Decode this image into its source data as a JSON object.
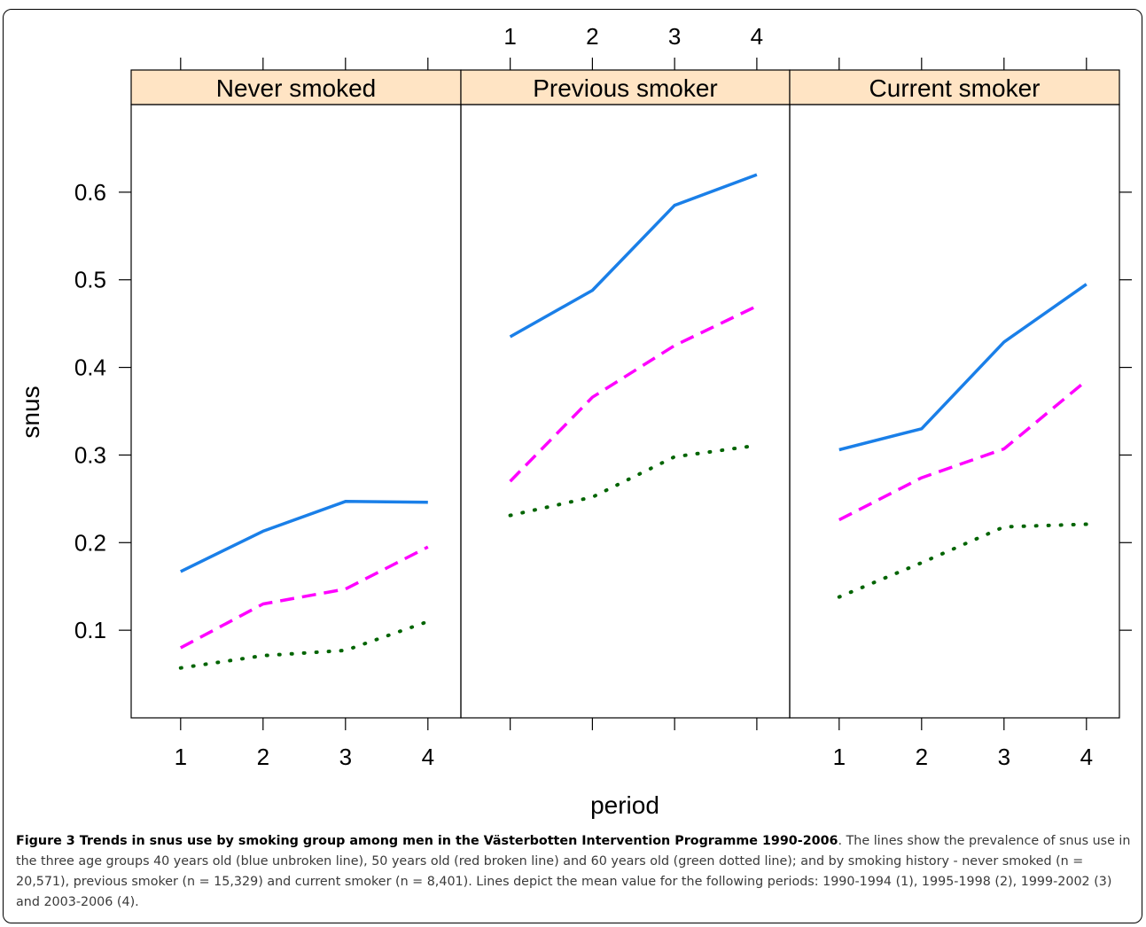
{
  "chart_data": {
    "type": "line",
    "ylabel": "snus",
    "xlabel": "period",
    "x": [
      1,
      2,
      3,
      4
    ],
    "x_tick_labels": [
      "1",
      "2",
      "3",
      "4"
    ],
    "y_ticks": [
      0.1,
      0.2,
      0.3,
      0.4,
      0.5,
      0.6
    ],
    "y_tick_labels": [
      "0.1",
      "0.2",
      "0.3",
      "0.4",
      "0.5",
      "0.6"
    ],
    "ylim": [
      0.0,
      0.7
    ],
    "xlim": [
      0.4,
      4.4
    ],
    "strip_color": "#ffe4c4",
    "panels": [
      {
        "title": "Never smoked",
        "series": [
          {
            "style": "solid",
            "color": "#1a7fe8",
            "values": [
              0.167,
              0.213,
              0.247,
              0.246
            ]
          },
          {
            "style": "dashed",
            "color": "#ff00ff",
            "values": [
              0.08,
              0.13,
              0.147,
              0.195
            ]
          },
          {
            "style": "dotted",
            "color": "#006400",
            "values": [
              0.057,
              0.071,
              0.077,
              0.11
            ]
          }
        ]
      },
      {
        "title": "Previous smoker",
        "series": [
          {
            "style": "solid",
            "color": "#1a7fe8",
            "values": [
              0.435,
              0.488,
              0.585,
              0.62
            ]
          },
          {
            "style": "dashed",
            "color": "#ff00ff",
            "values": [
              0.27,
              0.366,
              0.425,
              0.47
            ]
          },
          {
            "style": "dotted",
            "color": "#006400",
            "values": [
              0.231,
              0.252,
              0.298,
              0.311
            ]
          }
        ]
      },
      {
        "title": "Current smoker",
        "series": [
          {
            "style": "solid",
            "color": "#1a7fe8",
            "values": [
              0.306,
              0.33,
              0.429,
              0.495
            ]
          },
          {
            "style": "dashed",
            "color": "#ff00ff",
            "values": [
              0.226,
              0.274,
              0.307,
              0.385
            ]
          },
          {
            "style": "dotted",
            "color": "#006400",
            "values": [
              0.138,
              0.177,
              0.218,
              0.221
            ]
          }
        ]
      }
    ]
  },
  "caption": {
    "title": "Figure 3 Trends in snus use by smoking group among men in the Västerbotten Intervention Programme 1990-2006",
    "body": ". The lines show the prevalence of snus use in the three age groups 40 years old (blue unbroken line), 50 years old (red broken line) and 60 years old (green dotted line); and by smoking history - never smoked (n = 20,571), previous smoker (n = 15,329) and current smoker (n = 8,401). Lines depict the mean value for the following periods: 1990-1994 (1), 1995-1998 (2), 1999-2002 (3) and 2003-2006 (4)."
  }
}
